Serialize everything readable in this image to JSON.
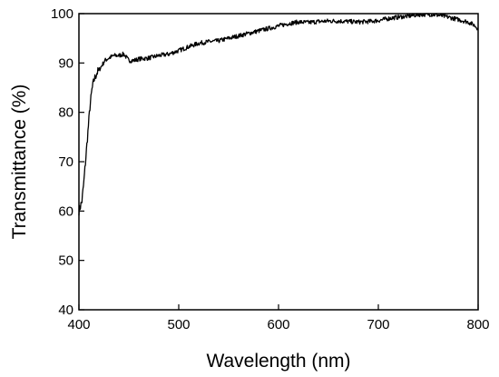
{
  "chart_data": {
    "type": "line",
    "title": "",
    "xlabel": "Wavelength (nm)",
    "ylabel": "Transmittance (%)",
    "xlim": [
      400,
      800
    ],
    "ylim": [
      40,
      100
    ],
    "x_ticks": [
      400,
      500,
      600,
      700,
      800
    ],
    "y_ticks": [
      40,
      50,
      60,
      70,
      80,
      90,
      100
    ],
    "x_tick_labels": [
      "400",
      "500",
      "600",
      "700",
      "800"
    ],
    "y_tick_labels": [
      "40",
      "50",
      "60",
      "70",
      "80",
      "90",
      "100"
    ],
    "grid": false,
    "legend": false,
    "line_color": "#000000",
    "series": [
      {
        "x": [
          400,
          403,
          405,
          407,
          409,
          411,
          413,
          415,
          418,
          420,
          423,
          426,
          430,
          435,
          440,
          445,
          450,
          455,
          460,
          470,
          480,
          490,
          500,
          510,
          520,
          530,
          540,
          550,
          560,
          570,
          580,
          590,
          600,
          610,
          620,
          630,
          640,
          650,
          660,
          670,
          680,
          690,
          700,
          710,
          720,
          730,
          740,
          750,
          760,
          770,
          780,
          790,
          795,
          800
        ],
        "y": [
          60,
          62,
          66,
          71,
          76,
          81,
          84.5,
          86.5,
          88,
          88.5,
          89.5,
          90.5,
          91,
          91.5,
          91.5,
          91.8,
          90.5,
          90.5,
          90.8,
          91,
          91.5,
          91.8,
          92.5,
          93.3,
          94,
          94.3,
          94.5,
          95,
          95.5,
          96,
          96.5,
          97,
          97.5,
          98,
          98.3,
          98.2,
          98.4,
          98.5,
          98.5,
          98.4,
          98.3,
          98.4,
          98.6,
          99,
          99.3,
          99.5,
          99.8,
          99.9,
          99.7,
          99.3,
          98.8,
          98.3,
          97.8,
          97
        ]
      }
    ]
  }
}
